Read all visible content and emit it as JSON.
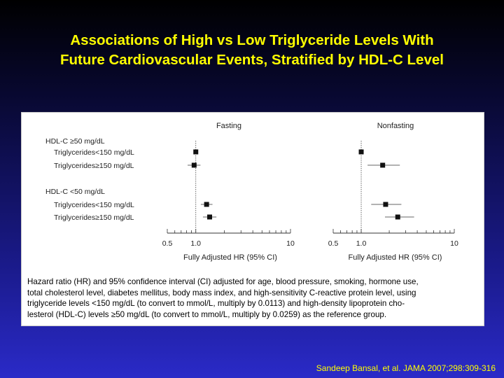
{
  "slide": {
    "title_line1": "Associations of High vs Low Triglyceride Levels With",
    "title_line2": "Future Cardiovascular Events, Stratified by HDL-C Level",
    "citation": "Sandeep Bansal, et al. JAMA 2007;298:309-316",
    "title_color": "#ffff00"
  },
  "chart_data": {
    "type": "forest",
    "scale": "log",
    "xlim": [
      0.5,
      10
    ],
    "reference_line": 1.0,
    "xticks": [
      0.5,
      1.0,
      10
    ],
    "xtick_labels": [
      "0.5",
      "1.0",
      "10"
    ],
    "xlabel": "Fully Adjusted HR (95% CI)",
    "groups": [
      {
        "label": "HDL-C ≥50 mg/dL",
        "rows": [
          "Triglycerides<150 mg/dL",
          "Triglycerides≥150 mg/dL"
        ]
      },
      {
        "label": "HDL-C <50 mg/dL",
        "rows": [
          "Triglycerides<150 mg/dL",
          "Triglycerides≥150 mg/dL"
        ]
      }
    ],
    "panels": [
      {
        "title": "Fasting",
        "estimates": [
          {
            "hr": 1.0,
            "lo": null,
            "hi": null
          },
          {
            "hr": 0.96,
            "lo": 0.82,
            "hi": 1.12
          },
          {
            "hr": 1.3,
            "lo": 1.13,
            "hi": 1.5
          },
          {
            "hr": 1.4,
            "lo": 1.19,
            "hi": 1.65
          }
        ]
      },
      {
        "title": "Nonfasting",
        "estimates": [
          {
            "hr": 1.0,
            "lo": null,
            "hi": null
          },
          {
            "hr": 1.7,
            "lo": 1.17,
            "hi": 2.6
          },
          {
            "hr": 1.83,
            "lo": 1.28,
            "hi": 2.7
          },
          {
            "hr": 2.47,
            "lo": 1.8,
            "hi": 3.7
          }
        ]
      }
    ],
    "caption_lines": [
      "Hazard ratio (HR) and 95% confidence interval (CI) adjusted for age, blood pressure, smoking, hormone use,",
      "total cholesterol level, diabetes mellitus, body mass index, and high-sensitivity C-reactive protein level, using",
      "triglyceride levels <150 mg/dL (to convert to mmol/L, multiply by 0.0113) and high-density lipoprotein cho-",
      "lesterol (HDL-C) levels ≥50 mg/dL (to convert to mmol/L, multiply by 0.0259) as the reference group."
    ]
  }
}
